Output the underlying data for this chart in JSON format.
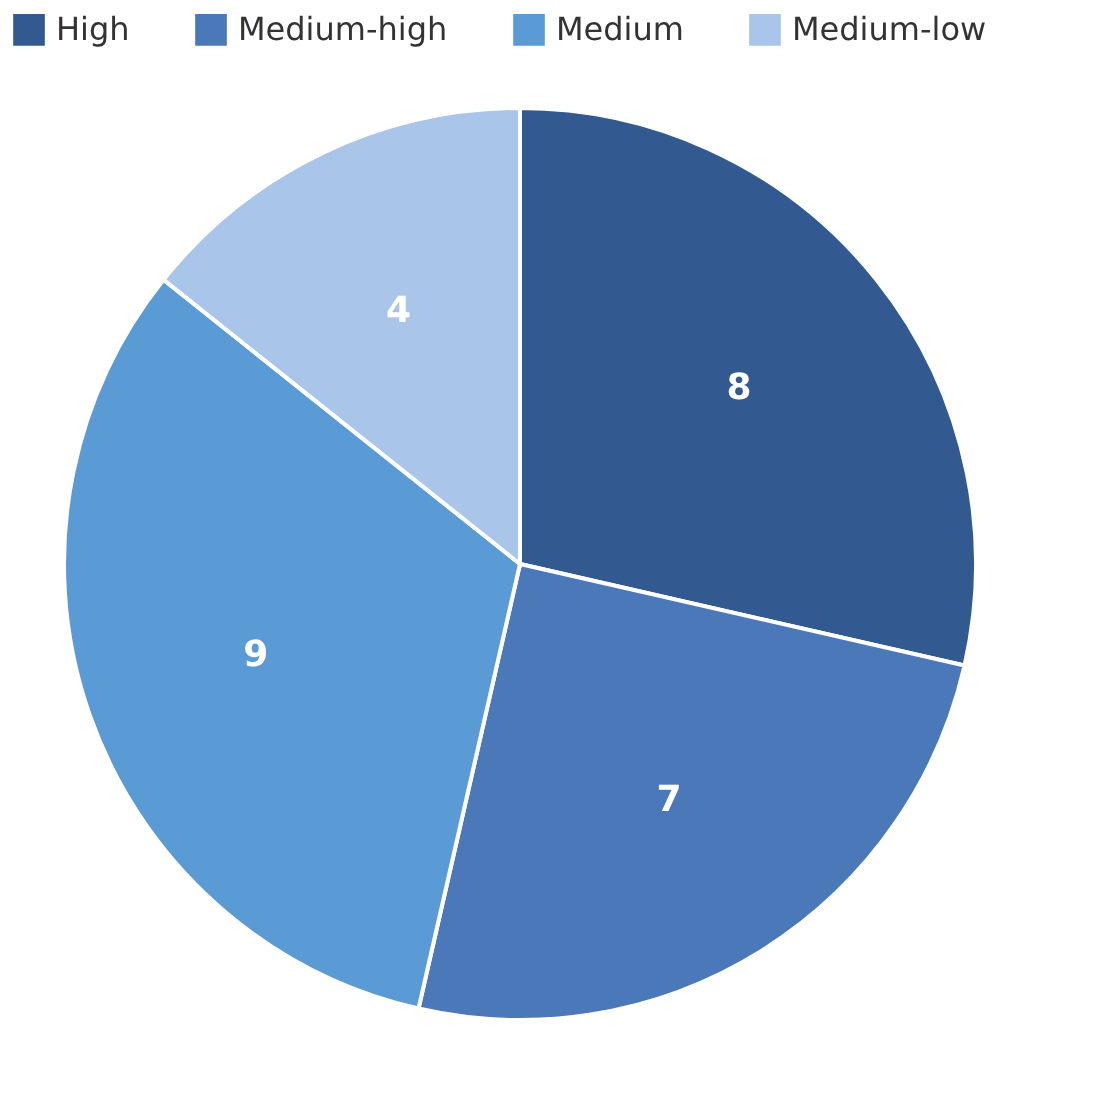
{
  "chart_data": {
    "type": "pie",
    "categories": [
      "High",
      "Medium-high",
      "Medium",
      "Medium-low"
    ],
    "values": [
      8,
      7,
      9,
      4
    ],
    "colors": [
      "#335a90",
      "#4a78b8",
      "#5b9bd5",
      "#a9c5ea"
    ],
    "data_labels": true,
    "legend": "top"
  }
}
